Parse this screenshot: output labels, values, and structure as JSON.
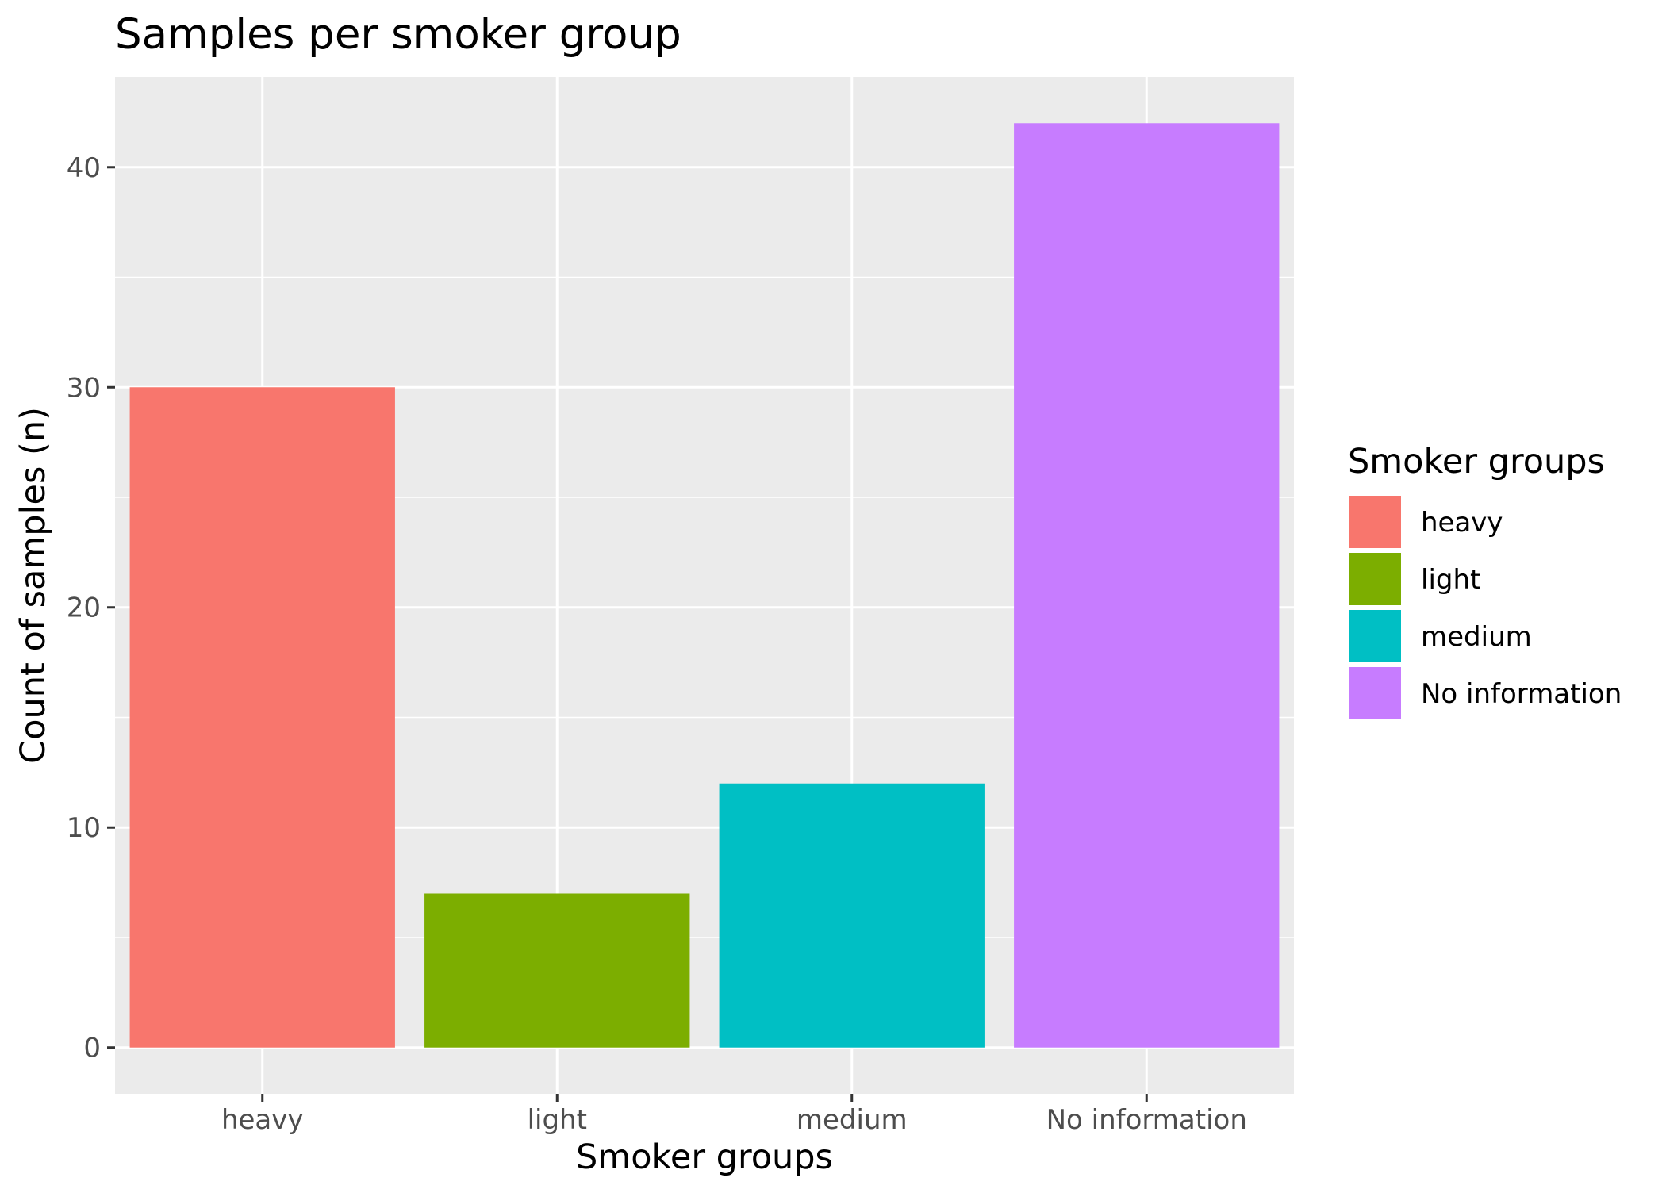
{
  "chart_data": {
    "type": "bar",
    "title": "Samples per smoker group",
    "xlabel": "Smoker groups",
    "ylabel": "Count of samples (n)",
    "categories": [
      "heavy",
      "light",
      "medium",
      "No information"
    ],
    "values": [
      30,
      7,
      12,
      42
    ],
    "colors": [
      "#F8766D",
      "#7CAE00",
      "#00BFC4",
      "#C77CFF"
    ],
    "ylim": [
      -2.1,
      44.1
    ],
    "yticks": [
      0,
      10,
      20,
      30,
      40
    ],
    "ytick_labels": [
      "0",
      "10",
      "20",
      "30",
      "40"
    ],
    "grid": true,
    "panel_background": "#EBEBEB",
    "legend": {
      "title": "Smoker groups",
      "placement": "right",
      "entries": [
        "heavy",
        "light",
        "medium",
        "No information"
      ]
    }
  }
}
